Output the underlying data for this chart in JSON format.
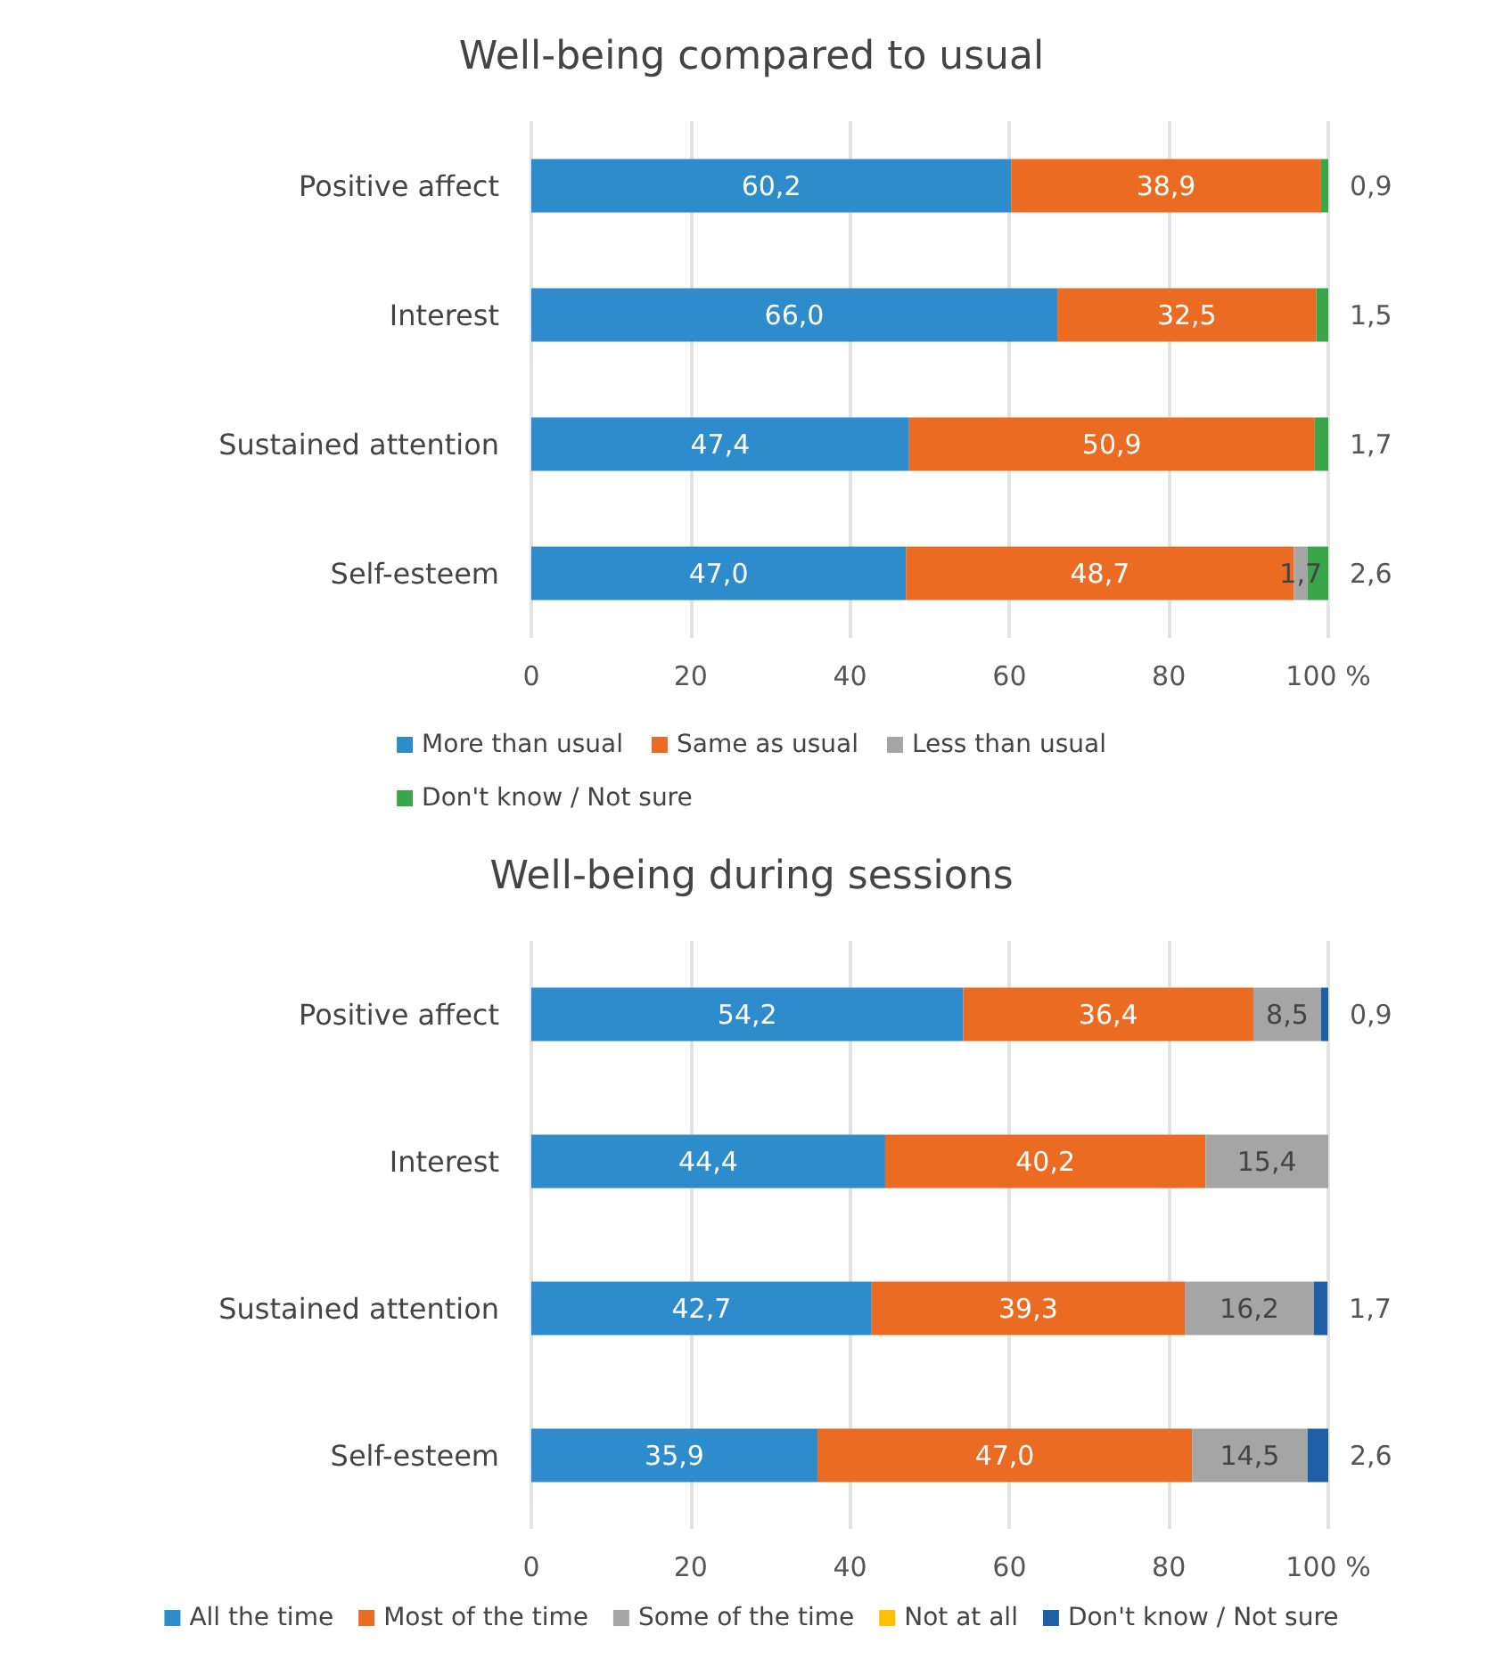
{
  "chart_data": [
    {
      "type": "bar",
      "title": "Well-being compared to usual",
      "orientation": "horizontal",
      "stacked": true,
      "categories": [
        "Positive affect",
        "Interest",
        "Sustained attention",
        "Self-esteem"
      ],
      "series": [
        {
          "name": "More than usual",
          "color": "#2e8bcc",
          "values": [
            60.2,
            66.0,
            47.4,
            47.0
          ],
          "value_labels": [
            "60,2",
            "66,0",
            "47,4",
            "47,0"
          ]
        },
        {
          "name": "Same as usual",
          "color": "#ec6b23",
          "values": [
            38.9,
            32.5,
            50.9,
            48.7
          ],
          "value_labels": [
            "38,9",
            "32,5",
            "50,9",
            "48,7"
          ]
        },
        {
          "name": "Less than usual",
          "color": "#a5a5a5",
          "values": [
            null,
            null,
            null,
            1.7
          ],
          "value_labels": [
            null,
            null,
            null,
            "1,7"
          ]
        },
        {
          "name": "Don't know / Not sure",
          "color": "#3aa64a",
          "values": [
            0.9,
            1.5,
            1.7,
            2.6
          ],
          "value_labels": [
            "0,9",
            "1,5",
            "1,7",
            "2,6"
          ]
        }
      ],
      "xlim": [
        0,
        100
      ],
      "xticks": [
        0,
        20,
        40,
        60,
        80,
        {
          "value": 100,
          "label": "100 %"
        }
      ],
      "grid": "x",
      "legend": "bottom"
    },
    {
      "type": "bar",
      "title": "Well-being during sessions",
      "orientation": "horizontal",
      "stacked": true,
      "categories": [
        "Positive affect",
        "Interest",
        "Sustained attention",
        "Self-esteem"
      ],
      "series": [
        {
          "name": "All the time",
          "color": "#2e8bcc",
          "values": [
            54.2,
            44.4,
            42.7,
            35.9
          ],
          "value_labels": [
            "54,2",
            "44,4",
            "42,7",
            "35,9"
          ]
        },
        {
          "name": "Most of the time",
          "color": "#ec6b23",
          "values": [
            36.4,
            40.2,
            39.3,
            47.0
          ],
          "value_labels": [
            "36,4",
            "40,2",
            "39,3",
            "47,0"
          ]
        },
        {
          "name": "Some of the time",
          "color": "#a5a5a5",
          "values": [
            8.5,
            15.4,
            16.2,
            14.5
          ],
          "value_labels": [
            "8,5",
            "15,4",
            "16,2",
            "14,5"
          ]
        },
        {
          "name": "Not at all",
          "color": "#ffc000",
          "values": [
            null,
            null,
            null,
            null
          ],
          "value_labels": [
            null,
            null,
            null,
            null
          ]
        },
        {
          "name": "Don't know / Not sure",
          "color": "#1f5fa8",
          "values": [
            0.9,
            null,
            1.7,
            2.6
          ],
          "value_labels": [
            "0,9",
            null,
            "1,7",
            "2,6"
          ]
        }
      ],
      "xlim": [
        0,
        100
      ],
      "xticks": [
        0,
        20,
        40,
        60,
        80,
        {
          "value": 100,
          "label": "100 %"
        }
      ],
      "grid": "x",
      "legend": "bottom"
    }
  ]
}
